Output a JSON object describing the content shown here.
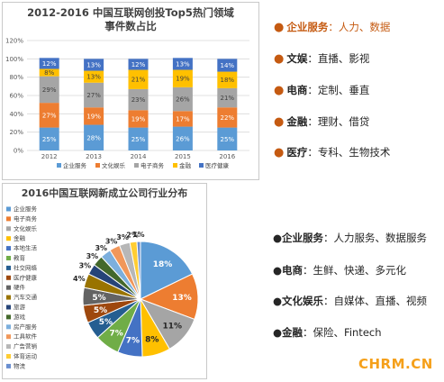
{
  "chart_data": [
    {
      "type": "bar",
      "stacked": true,
      "percent": true,
      "title": "2012-2016 中国互联网创投Top5热门领域事件数占比",
      "title_lines": [
        "2012-2016 中国互联网创投Top5热门领域",
        "事件数占比"
      ],
      "categories": [
        "2012",
        "2013",
        "2014",
        "2015",
        "2016"
      ],
      "ylim": [
        0,
        120
      ],
      "yticks": [
        "0%",
        "20%",
        "40%",
        "60%",
        "80%",
        "100%",
        "120%"
      ],
      "grid": true,
      "legend_position": "bottom",
      "series": [
        {
          "name": "企业服务",
          "color": "#5b9bd5",
          "values": [
            25,
            28,
            25,
            26,
            25
          ],
          "labels": [
            "25%",
            "28%",
            "25%",
            "26%",
            "25%"
          ]
        },
        {
          "name": "文化娱乐",
          "color": "#ed7d31",
          "values": [
            27,
            19,
            19,
            17,
            22
          ],
          "labels": [
            "27%",
            "19%",
            "19%",
            "17%",
            "22%"
          ]
        },
        {
          "name": "电子商务",
          "color": "#a5a5a5",
          "values": [
            29,
            27,
            23,
            26,
            21
          ],
          "labels": [
            "29%",
            "27%",
            "23%",
            "26%",
            "21%"
          ]
        },
        {
          "name": "金融",
          "color": "#ffc000",
          "values": [
            8,
            13,
            21,
            19,
            18
          ],
          "labels": [
            "8%",
            "13%",
            "21%",
            "19%",
            "18%"
          ]
        },
        {
          "name": "医疗健康",
          "color": "#4472c4",
          "values": [
            12,
            13,
            12,
            13,
            14
          ],
          "labels": [
            "12%",
            "13%",
            "12%",
            "13%",
            "14%"
          ]
        }
      ]
    },
    {
      "type": "pie",
      "title": "2016中国互联网新成立公司行业分布",
      "legend_position": "left",
      "slices": [
        {
          "name": "企业服务",
          "value": 18,
          "label": "18%",
          "color": "#5b9bd5"
        },
        {
          "name": "电子商务",
          "value": 13,
          "label": "13%",
          "color": "#ed7d31"
        },
        {
          "name": "文化娱乐",
          "value": 11,
          "label": "11%",
          "color": "#a5a5a5"
        },
        {
          "name": "金融",
          "value": 8,
          "label": "8%",
          "color": "#ffc000"
        },
        {
          "name": "本地生活",
          "value": 7,
          "label": "7%",
          "color": "#4472c4"
        },
        {
          "name": "教育",
          "value": 7,
          "label": "7%",
          "color": "#70ad47"
        },
        {
          "name": "社交网络",
          "value": 5,
          "label": "5%",
          "color": "#255e91"
        },
        {
          "name": "医疗健康",
          "value": 5,
          "label": "5%",
          "color": "#9e480e"
        },
        {
          "name": "硬件",
          "value": 5,
          "label": "5%",
          "color": "#636363"
        },
        {
          "name": "汽车交通",
          "value": 4,
          "label": "4%",
          "color": "#997300"
        },
        {
          "name": "旅游",
          "value": 3,
          "label": "3%",
          "color": "#264478"
        },
        {
          "name": "游戏",
          "value": 3,
          "label": "3%",
          "color": "#43682b"
        },
        {
          "name": "房产服务",
          "value": 3,
          "label": "3%",
          "color": "#7cafdd"
        },
        {
          "name": "工具软件",
          "value": 3,
          "label": "3%",
          "color": "#f1975a"
        },
        {
          "name": "广告营销",
          "value": 3,
          "label": "3%",
          "color": "#b7b7b7"
        },
        {
          "name": "体育运动",
          "value": 2,
          "label": "2%",
          "color": "#ffcd33"
        },
        {
          "name": "物流",
          "value": 1,
          "label": "1%",
          "color": "#698ed0"
        }
      ]
    }
  ],
  "key_points_top": [
    {
      "category": "企业服务",
      "sep": "：",
      "text": "人力、数据"
    },
    {
      "category": "文娱",
      "sep": "：",
      "text": "直播、影视"
    },
    {
      "category": "电商",
      "sep": "：",
      "text": "定制、垂直"
    },
    {
      "category": "金融",
      "sep": "：",
      "text": "理财、借贷"
    },
    {
      "category": "医疗",
      "sep": "：",
      "text": "专科、生物技术"
    }
  ],
  "key_points_bottom": [
    {
      "category": "企业服务",
      "sep": "：",
      "text": "人力服务、数据服务"
    },
    {
      "category": "电商",
      "sep": "：",
      "text": "生鲜、快递、多元化"
    },
    {
      "category": "文化娱乐",
      "sep": "：",
      "text": "自媒体、直播、视频"
    },
    {
      "category": "金融",
      "sep": "：",
      "text": "保险、Fintech"
    }
  ],
  "bullet_glyph": "●",
  "watermark": "CHRM.CN"
}
